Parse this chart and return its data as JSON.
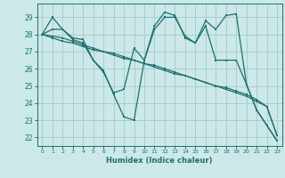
{
  "xlabel": "Humidex (Indice chaleur)",
  "xlim": [
    -0.5,
    23.5
  ],
  "ylim": [
    21.5,
    29.8
  ],
  "yticks": [
    22,
    23,
    24,
    25,
    26,
    27,
    28,
    29
  ],
  "xticks": [
    0,
    1,
    2,
    3,
    4,
    5,
    6,
    7,
    8,
    9,
    10,
    11,
    12,
    13,
    14,
    15,
    16,
    17,
    18,
    19,
    20,
    21,
    22,
    23
  ],
  "background_color": "#cce8e8",
  "grid_color": "#aacece",
  "line_color": "#1e7070",
  "line1": [
    28.0,
    29.0,
    28.3,
    27.8,
    27.7,
    26.5,
    25.9,
    24.5,
    23.2,
    23.0,
    26.5,
    28.5,
    29.3,
    29.1,
    27.8,
    27.5,
    28.8,
    28.3,
    29.1,
    29.2,
    25.1,
    23.6,
    22.7,
    21.8
  ],
  "line2": [
    28.0,
    28.3,
    28.3,
    27.7,
    27.5,
    26.5,
    25.8,
    24.6,
    24.8,
    27.2,
    26.5,
    28.3,
    29.0,
    29.0,
    27.9,
    27.5,
    28.5,
    26.5,
    26.5,
    26.5,
    25.1,
    23.6,
    22.7,
    21.8
  ],
  "line3": [
    28.0,
    27.8,
    27.6,
    27.5,
    27.3,
    27.1,
    27.0,
    26.8,
    26.6,
    26.5,
    26.3,
    26.1,
    25.9,
    25.7,
    25.6,
    25.4,
    25.2,
    25.0,
    24.9,
    24.7,
    24.5,
    24.2,
    23.8,
    22.1
  ],
  "line4": [
    28.0,
    27.9,
    27.8,
    27.6,
    27.4,
    27.2,
    27.0,
    26.9,
    26.7,
    26.5,
    26.3,
    26.2,
    26.0,
    25.8,
    25.6,
    25.4,
    25.2,
    25.0,
    24.8,
    24.6,
    24.4,
    24.1,
    23.8,
    22.1
  ]
}
